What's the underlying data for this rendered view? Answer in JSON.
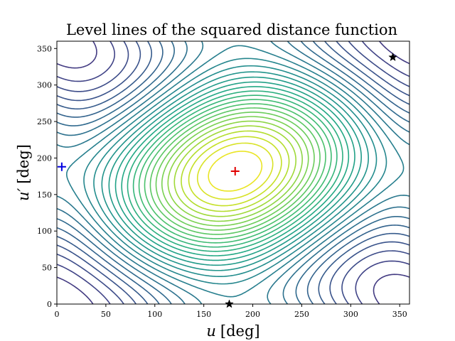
{
  "chart_data": {
    "type": "contour",
    "title": "Level lines of the squared distance function",
    "xlabel": {
      "var": "u",
      "unit": "[deg]"
    },
    "ylabel": {
      "var": "u′",
      "unit": "[deg]"
    },
    "xlim": [
      0,
      360
    ],
    "ylim": [
      0,
      360
    ],
    "xticks": [
      0,
      50,
      100,
      150,
      200,
      250,
      300,
      350
    ],
    "yticks": [
      0,
      50,
      100,
      150,
      200,
      250,
      300,
      350
    ],
    "colormap": "viridis",
    "function": {
      "center": [
        182,
        182
      ],
      "period": 360,
      "asymmetry": 0.35
    },
    "levels": {
      "count": 34,
      "min_fraction": 0.03,
      "max_fraction": 0.97
    },
    "markers": [
      {
        "name": "maximum-point",
        "x": 182,
        "y": 182,
        "symbol": "plus",
        "color": "#e00000"
      },
      {
        "name": "minimum-point",
        "x": 5,
        "y": 188,
        "symbol": "plus",
        "color": "#0000e0"
      },
      {
        "name": "saddle-point-top-right",
        "x": 343,
        "y": 338,
        "symbol": "star",
        "color": "#000000"
      },
      {
        "name": "saddle-point-bottom",
        "x": 176,
        "y": 0,
        "symbol": "star",
        "color": "#000000"
      }
    ]
  }
}
